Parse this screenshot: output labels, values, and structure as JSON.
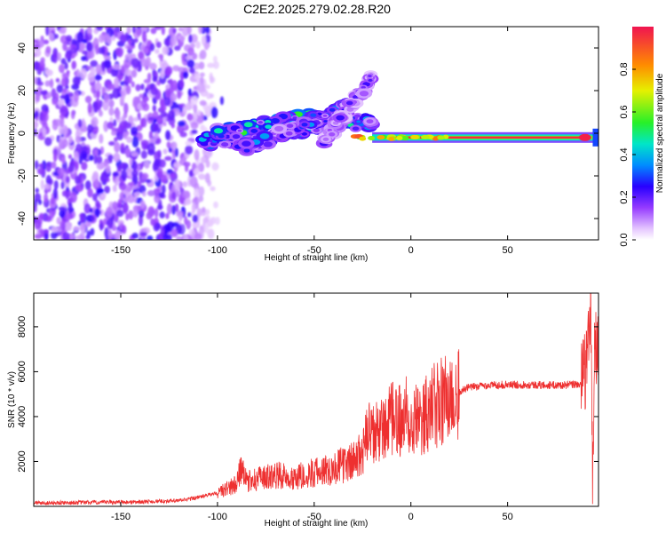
{
  "figure": {
    "title": "C2E2.2025.279.02.28.R20"
  },
  "colors": {
    "snr_line": "#ee3030",
    "axis": "#000000"
  },
  "chart_data": [
    {
      "type": "heatmap",
      "xlabel": "Height of straight line (km)",
      "ylabel": "Frequency (Hz)",
      "xlim": [
        -195,
        97
      ],
      "ylim": [
        -50,
        50
      ],
      "xticks": [
        -150,
        -100,
        -50,
        0,
        50
      ],
      "yticks": [
        -40,
        -20,
        0,
        20,
        40
      ],
      "colorbar": {
        "label": "Normalized spectral amplitude",
        "range": [
          0,
          1
        ],
        "ticks": [
          0.0,
          0.2,
          0.4,
          0.6,
          0.8
        ],
        "ticklabels": [
          "0.0",
          "0.2",
          "0.4",
          "0.6",
          "0.8"
        ],
        "colormap": "rainbow"
      },
      "features": {
        "noise_region_x": [
          -195,
          -100
        ],
        "carrier_ridge_from_x": -20,
        "carrier_frequency_hz": -2,
        "carrier_amplitude": 0.97,
        "branches": [
          {
            "x0": -108,
            "y0": -4,
            "x1": -20,
            "y1": 6,
            "amplitude": 0.4
          },
          {
            "x0": -100,
            "y0": 0,
            "x1": -45,
            "y1": 8,
            "amplitude": 0.45
          },
          {
            "x0": -90,
            "y0": -8,
            "x1": -28,
            "y1": 14,
            "amplitude": 0.3
          },
          {
            "x0": -45,
            "y0": -4,
            "x1": -20,
            "y1": 26,
            "amplitude": 0.2
          }
        ]
      }
    },
    {
      "type": "line",
      "xlabel": "Height of straight line (km)",
      "ylabel": "SNR (10 * v/v)",
      "xlim": [
        -195,
        97
      ],
      "ylim": [
        0,
        9500
      ],
      "xticks": [
        -150,
        -100,
        -50,
        0,
        50
      ],
      "yticks": [
        2000,
        4000,
        6000,
        8000
      ],
      "series": [
        {
          "name": "SNR",
          "x": [
            -195,
            -180,
            -160,
            -140,
            -120,
            -110,
            -100,
            -95,
            -90,
            -88,
            -85,
            -80,
            -70,
            -60,
            -50,
            -40,
            -30,
            -25,
            -22,
            -20,
            -15,
            -10,
            -5,
            0,
            5,
            10,
            15,
            20,
            25,
            30,
            40,
            50,
            60,
            70,
            80,
            88,
            90,
            92,
            93,
            94,
            95,
            96,
            97
          ],
          "values": [
            150,
            160,
            180,
            200,
            250,
            400,
            600,
            800,
            1000,
            1700,
            1100,
            1200,
            1400,
            1300,
            1500,
            1700,
            2000,
            2400,
            3300,
            3100,
            3400,
            3800,
            3900,
            4200,
            3700,
            4300,
            4600,
            4900,
            5100,
            5300,
            5400,
            5420,
            5420,
            5400,
            5400,
            5450,
            6000,
            7500,
            9200,
            300,
            8000,
            6500,
            7500
          ]
        }
      ]
    }
  ]
}
